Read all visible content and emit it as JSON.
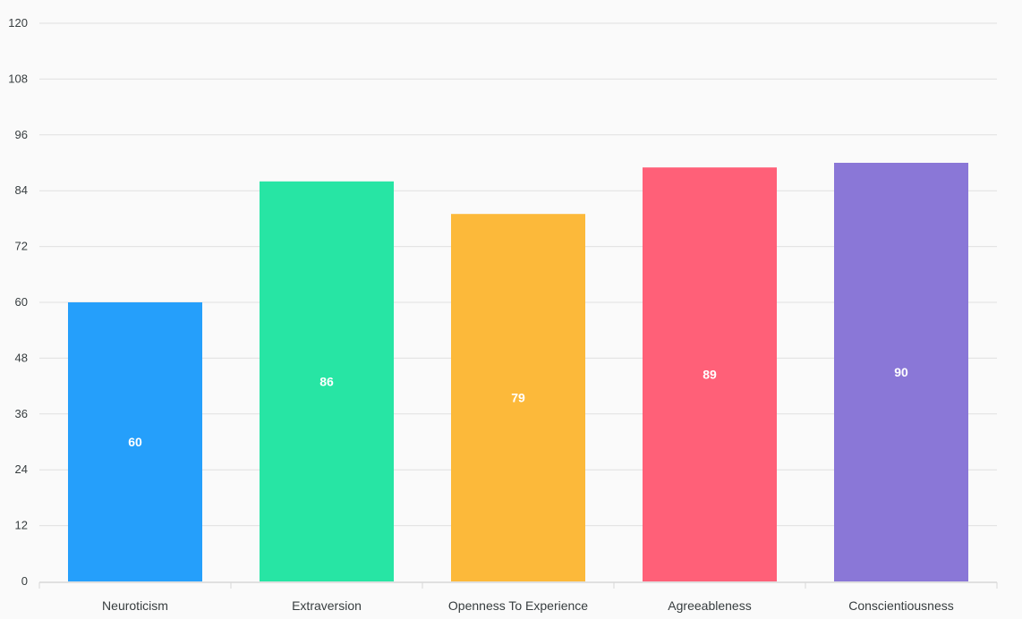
{
  "chart_data": {
    "type": "bar",
    "categories": [
      "Neuroticism",
      "Extraversion",
      "Openness To Experience",
      "Agreeableness",
      "Conscientiousness"
    ],
    "values": [
      60,
      86,
      79,
      89,
      90
    ],
    "colors": [
      "#259ffb",
      "#27e5a4",
      "#fcb93a",
      "#ff6078",
      "#8a77d7"
    ],
    "ylim": [
      0,
      120
    ],
    "yticks": [
      0,
      12,
      24,
      36,
      48,
      60,
      72,
      84,
      96,
      108,
      120
    ],
    "grid": true,
    "data_labels": true,
    "title": "",
    "xlabel": "",
    "ylabel": ""
  }
}
